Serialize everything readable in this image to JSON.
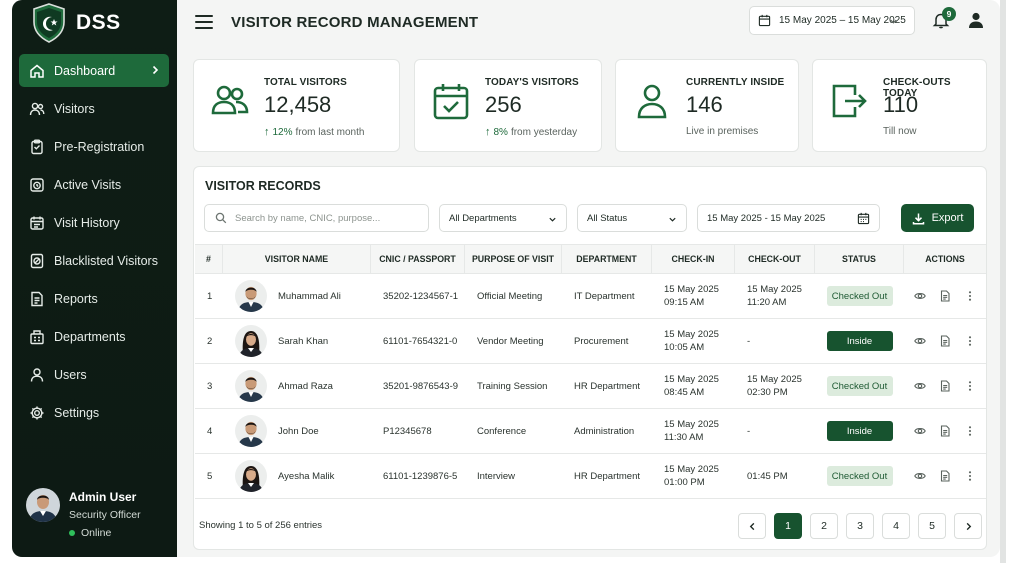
{
  "colors": {
    "sidebar_bg": "#0e1d15",
    "accent": "#1e6a3b",
    "button_dark": "#17532f",
    "badge_out_bg": "#dcebdd"
  },
  "brand": {
    "name": "DSS"
  },
  "sidebar": {
    "items": [
      {
        "label": "Dashboard",
        "icon": "home-icon",
        "active": true
      },
      {
        "label": "Visitors",
        "icon": "users-icon"
      },
      {
        "label": "Pre-Registration",
        "icon": "clipboard-icon"
      },
      {
        "label": "Active Visits",
        "icon": "clock-badge-icon"
      },
      {
        "label": "Visit History",
        "icon": "calendar-icon"
      },
      {
        "label": "Blacklisted Visitors",
        "icon": "ban-file-icon"
      },
      {
        "label": "Reports",
        "icon": "document-icon"
      },
      {
        "label": "Departments",
        "icon": "building-icon"
      },
      {
        "label": "Users",
        "icon": "user-icon"
      },
      {
        "label": "Settings",
        "icon": "gear-icon"
      }
    ],
    "profile": {
      "name": "Admin User",
      "role": "Security Officer",
      "status": "Online"
    }
  },
  "header": {
    "title": "VISITOR RECORD MANAGEMENT",
    "date_range": "15 May 2025 – 15 May 2025",
    "notifications": "9"
  },
  "stats": [
    {
      "label": "TOTAL VISITORS",
      "value": "12,458",
      "pct": "12%",
      "sub": "from last month",
      "trend": true
    },
    {
      "label": "TODAY'S VISITORS",
      "value": "256",
      "pct": "8%",
      "sub": "from yesterday",
      "trend": true
    },
    {
      "label": "CURRENTLY INSIDE",
      "value": "146",
      "pct": "",
      "sub": "Live in premises",
      "trend": false
    },
    {
      "label": "CHECK-OUTS TODAY",
      "value": "110",
      "pct": "",
      "sub": "Till now",
      "trend": false
    }
  ],
  "records": {
    "title": "VISITOR RECORDS",
    "search_placeholder": "Search by name, CNIC, purpose...",
    "department_filter": "All Departments",
    "status_filter": "All Status",
    "date_filter": "15 May 2025 - 15 May 2025",
    "export_label": "Export",
    "columns": [
      "#",
      "VISITOR NAME",
      "CNIC / PASSPORT",
      "PURPOSE OF VISIT",
      "DEPARTMENT",
      "CHECK-IN",
      "CHECK-OUT",
      "STATUS",
      "ACTIONS"
    ],
    "rows": [
      {
        "num": "1",
        "name": "Muhammad Ali",
        "id": "35202-1234567-1",
        "purpose": "Official Meeting",
        "dept": "IT Department",
        "in_date": "15 May 2025",
        "in_time": "09:15 AM",
        "out_date": "15 May 2025",
        "out_time": "11:20 AM",
        "status": "Checked Out",
        "avatar": "male"
      },
      {
        "num": "2",
        "name": "Sarah Khan",
        "id": "61101-7654321-0",
        "purpose": "Vendor Meeting",
        "dept": "Procurement",
        "in_date": "15 May 2025",
        "in_time": "10:05 AM",
        "out_date": "",
        "out_time": "-",
        "status": "Inside",
        "avatar": "female"
      },
      {
        "num": "3",
        "name": "Ahmad Raza",
        "id": "35201-9876543-9",
        "purpose": "Training Session",
        "dept": "HR Department",
        "in_date": "15 May 2025",
        "in_time": "08:45 AM",
        "out_date": "15 May 2025",
        "out_time": "02:30 PM",
        "status": "Checked Out",
        "avatar": "male"
      },
      {
        "num": "4",
        "name": "John Doe",
        "id": "P12345678",
        "purpose": "Conference",
        "dept": "Administration",
        "in_date": "15 May 2025",
        "in_time": "11:30 AM",
        "out_date": "",
        "out_time": "-",
        "status": "Inside",
        "avatar": "male"
      },
      {
        "num": "5",
        "name": "Ayesha Malik",
        "id": "61101-1239876-5",
        "purpose": "Interview",
        "dept": "HR Department",
        "in_date": "15 May 2025",
        "in_time": "01:00 PM",
        "out_date": "",
        "out_time": "01:45 PM",
        "status": "Checked Out",
        "avatar": "female"
      }
    ],
    "footer_text": "Showing 1 to 5 of 256 entries",
    "pages": [
      "1",
      "2",
      "3",
      "4",
      "5"
    ]
  }
}
